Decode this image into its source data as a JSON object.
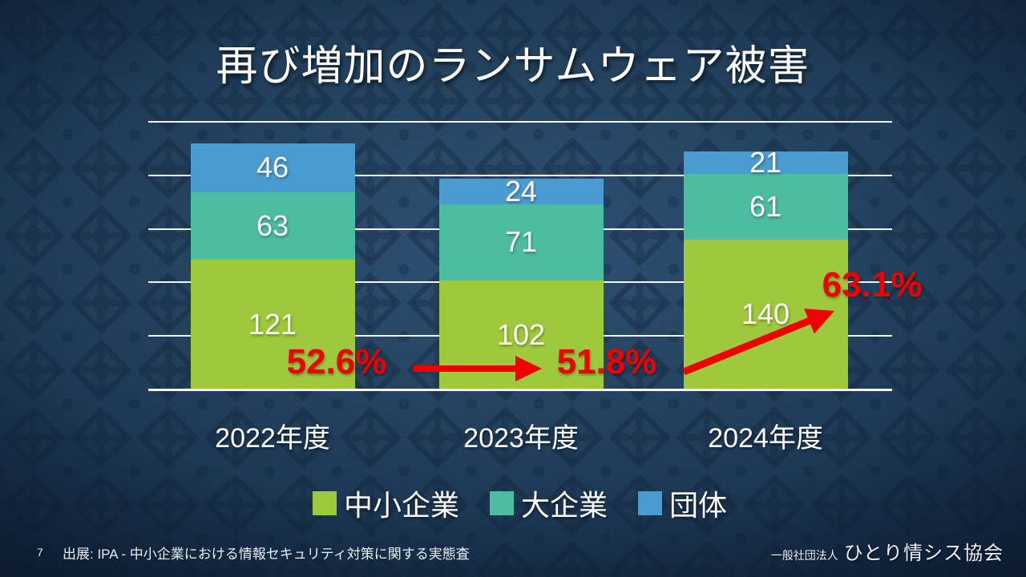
{
  "slide": {
    "title": "再び増加のランサムウェア被害",
    "page_number": "7",
    "source": "出展: IPA - 中小企業における情報セキュリティ対策に関する実態査",
    "org_name_small": "一般社団法人",
    "org_name_large": "ひとり情シス協会"
  },
  "colors": {
    "accent_red": "#f10000",
    "gridline": "#ffffff",
    "background_center": "#2e5075",
    "background_edge": "#0a1a2c",
    "label_text": "#ffffff"
  },
  "chart_data": {
    "type": "bar",
    "stacked": true,
    "title": "",
    "xlabel": "",
    "ylabel": "",
    "categories": [
      "2022年度",
      "2023年度",
      "2024年度"
    ],
    "series": [
      {
        "name": "中小企業",
        "color": "#9fc93c",
        "values": [
          121,
          102,
          140
        ]
      },
      {
        "name": "大企業",
        "color": "#4dbda2",
        "values": [
          63,
          71,
          61
        ]
      },
      {
        "name": "団体",
        "color": "#4a9bd0",
        "values": [
          46,
          24,
          21
        ]
      }
    ],
    "totals": [
      230,
      197,
      222
    ],
    "ylim": [
      0,
      250
    ],
    "gridline_step": 50,
    "grid": true,
    "axis_tick_labels_shown": false,
    "legend_position": "bottom",
    "annotations": [
      {
        "text": "52.6%",
        "category": "2022年度"
      },
      {
        "text": "51.8%",
        "category": "2023年度"
      },
      {
        "text": "63.1%",
        "category": "2024年度"
      }
    ]
  }
}
